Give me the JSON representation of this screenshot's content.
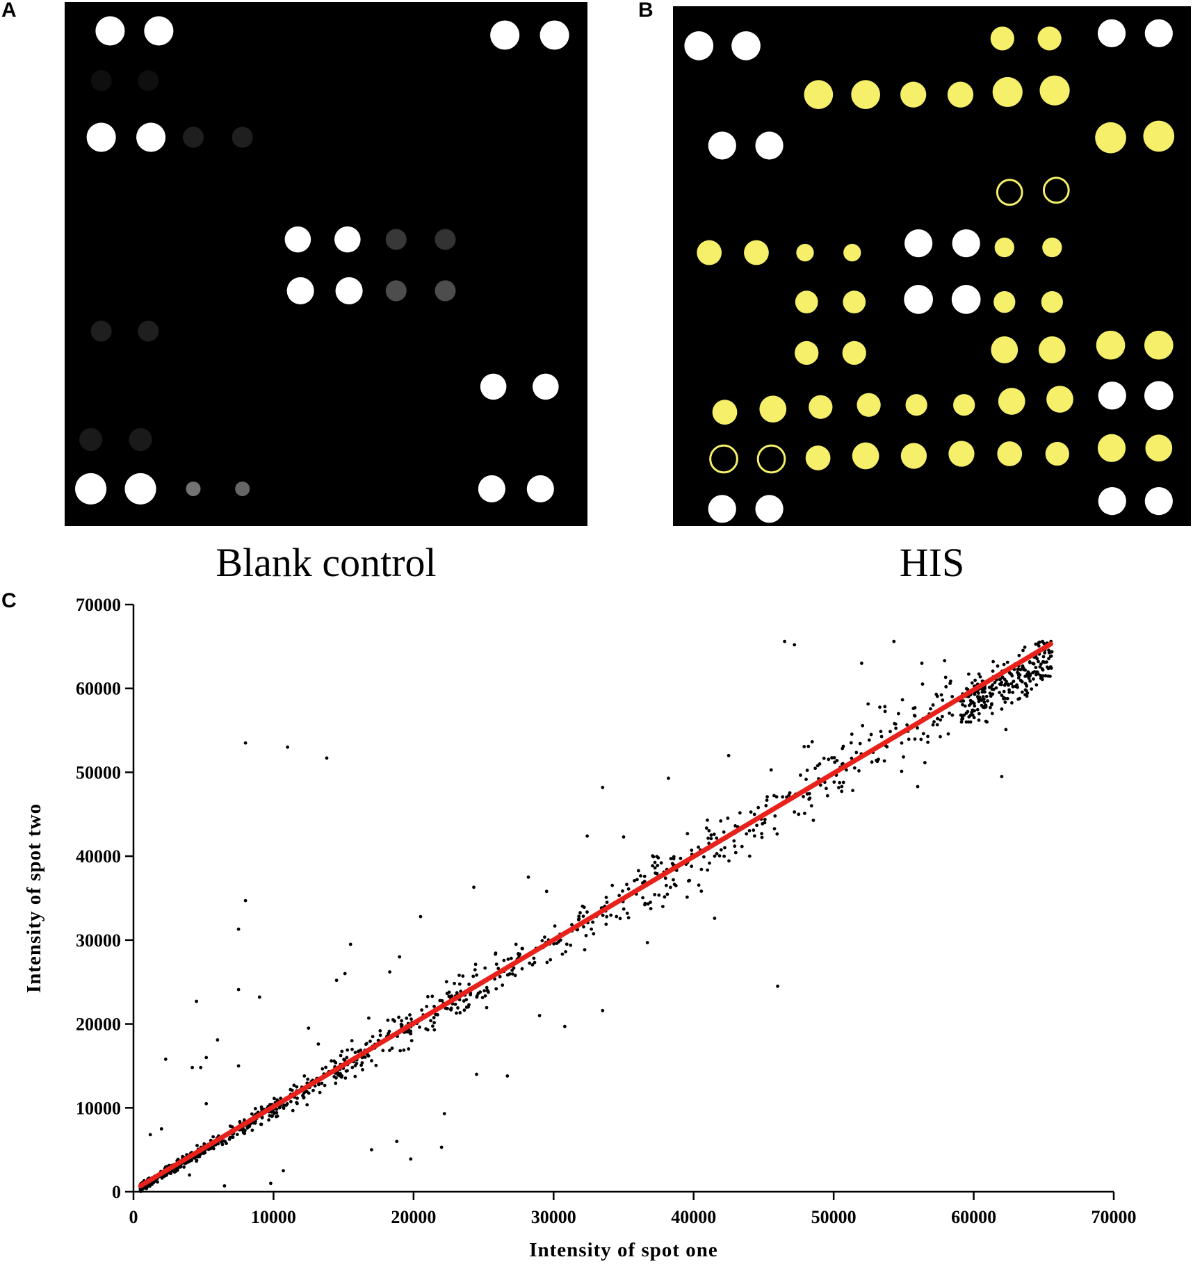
{
  "panels": {
    "a": {
      "letter": "A",
      "caption": "Blank control"
    },
    "b": {
      "letter": "B",
      "caption": "HIS"
    },
    "c": {
      "letter": "C"
    }
  },
  "colors": {
    "background": "#000000",
    "reference_spot": "#ffffff",
    "positive_spot": "#f5ef6a",
    "fit_line": "#e8211b",
    "points": "#000000"
  },
  "chart_data": {
    "type": "scatter",
    "xlabel": "Intensity of spot one",
    "ylabel": "Intensity of spot two",
    "xlim": [
      0,
      70000
    ],
    "ylim": [
      0,
      70000
    ],
    "xticks": [
      0,
      10000,
      20000,
      30000,
      40000,
      50000,
      60000,
      70000
    ],
    "yticks": [
      0,
      10000,
      20000,
      30000,
      40000,
      50000,
      60000,
      70000
    ],
    "grid": false,
    "fit_line": {
      "x": [
        500,
        65500
      ],
      "y": [
        700,
        65300
      ]
    },
    "outliers": [
      [
        8000,
        53500
      ],
      [
        11000,
        53000
      ],
      [
        13800,
        51700
      ],
      [
        8000,
        34700
      ],
      [
        7500,
        31300
      ],
      [
        7500,
        24100
      ],
      [
        9000,
        23200
      ],
      [
        4500,
        22700
      ],
      [
        2300,
        15800
      ],
      [
        4200,
        14800
      ],
      [
        4800,
        14800
      ],
      [
        15500,
        29500
      ],
      [
        14500,
        25200
      ],
      [
        15100,
        26000
      ],
      [
        24300,
        36300
      ],
      [
        28200,
        37500
      ],
      [
        29500,
        35800
      ],
      [
        33500,
        48200
      ],
      [
        38200,
        49300
      ],
      [
        32400,
        42400
      ],
      [
        35000,
        42300
      ],
      [
        42500,
        52000
      ],
      [
        41500,
        32600
      ],
      [
        36700,
        29700
      ],
      [
        33500,
        21600
      ],
      [
        30800,
        19700
      ],
      [
        29000,
        21000
      ],
      [
        26700,
        13800
      ],
      [
        24500,
        14000
      ],
      [
        22200,
        9300
      ],
      [
        22000,
        5300
      ],
      [
        19800,
        3900
      ],
      [
        18800,
        6000
      ],
      [
        17000,
        5000
      ],
      [
        9800,
        1000
      ],
      [
        10700,
        2500
      ],
      [
        46000,
        24500
      ],
      [
        46500,
        65600
      ],
      [
        47200,
        65200
      ],
      [
        54300,
        65600
      ],
      [
        56300,
        63000
      ],
      [
        52000,
        63000
      ],
      [
        49000,
        51000
      ],
      [
        50700,
        48800
      ],
      [
        56000,
        48300
      ],
      [
        62000,
        49500
      ],
      [
        62300,
        55100
      ],
      [
        55800,
        57700
      ],
      [
        47500,
        45000
      ],
      [
        44000,
        40000
      ],
      [
        41500,
        40000
      ],
      [
        40000,
        40000
      ],
      [
        37800,
        34000
      ],
      [
        36500,
        37000
      ],
      [
        30500,
        30000
      ],
      [
        20500,
        32800
      ],
      [
        19000,
        28000
      ],
      [
        18300,
        26200
      ],
      [
        16800,
        20700
      ],
      [
        15600,
        18000
      ],
      [
        13200,
        17600
      ],
      [
        7500,
        15000
      ],
      [
        6000,
        18100
      ],
      [
        5200,
        10500
      ],
      [
        12500,
        19500
      ],
      [
        5200,
        16000
      ],
      [
        2000,
        7500
      ],
      [
        1200,
        6800
      ],
      [
        6500,
        700
      ],
      [
        4000,
        2000
      ]
    ],
    "scatter_seed": 7,
    "scatter_noise_fraction": 0.07,
    "cluster": {
      "x_range": [
        59000,
        65600
      ],
      "y_range": [
        56000,
        65600
      ],
      "count": 260
    },
    "main_count": 1150
  },
  "array_a": {
    "white_spots": [
      [
        0.087,
        0.055,
        0.028
      ],
      [
        0.18,
        0.055,
        0.028
      ],
      [
        0.842,
        0.063,
        0.028
      ],
      [
        0.937,
        0.063,
        0.028
      ],
      [
        0.07,
        0.258,
        0.028
      ],
      [
        0.165,
        0.258,
        0.028
      ],
      [
        0.446,
        0.453,
        0.025
      ],
      [
        0.541,
        0.453,
        0.025
      ],
      [
        0.451,
        0.551,
        0.026
      ],
      [
        0.544,
        0.551,
        0.026
      ],
      [
        0.82,
        0.734,
        0.025
      ],
      [
        0.92,
        0.734,
        0.025
      ],
      [
        0.05,
        0.929,
        0.03
      ],
      [
        0.145,
        0.929,
        0.03
      ],
      [
        0.817,
        0.929,
        0.026
      ],
      [
        0.91,
        0.929,
        0.026
      ]
    ],
    "faint_spots": [
      [
        0.246,
        0.258,
        0.02,
        0.12
      ],
      [
        0.34,
        0.258,
        0.02,
        0.12
      ],
      [
        0.634,
        0.453,
        0.02,
        0.22
      ],
      [
        0.728,
        0.453,
        0.02,
        0.2
      ],
      [
        0.634,
        0.551,
        0.02,
        0.3
      ],
      [
        0.728,
        0.551,
        0.02,
        0.3
      ],
      [
        0.246,
        0.929,
        0.014,
        0.45
      ],
      [
        0.34,
        0.929,
        0.014,
        0.4
      ],
      [
        0.07,
        0.628,
        0.02,
        0.12
      ],
      [
        0.16,
        0.628,
        0.02,
        0.12
      ],
      [
        0.05,
        0.835,
        0.022,
        0.1
      ],
      [
        0.145,
        0.835,
        0.022,
        0.1
      ],
      [
        0.07,
        0.15,
        0.02,
        0.06
      ],
      [
        0.16,
        0.15,
        0.02,
        0.06
      ]
    ]
  },
  "array_b": {
    "white_spots": [
      [
        0.05,
        0.076,
        0.028
      ],
      [
        0.141,
        0.076,
        0.028
      ],
      [
        0.847,
        0.052,
        0.027
      ],
      [
        0.938,
        0.052,
        0.027
      ],
      [
        0.095,
        0.268,
        0.027
      ],
      [
        0.186,
        0.268,
        0.027
      ],
      [
        0.474,
        0.456,
        0.027
      ],
      [
        0.566,
        0.456,
        0.027
      ],
      [
        0.474,
        0.564,
        0.028
      ],
      [
        0.566,
        0.564,
        0.028
      ],
      [
        0.848,
        0.749,
        0.027
      ],
      [
        0.938,
        0.749,
        0.028
      ],
      [
        0.095,
        0.967,
        0.027
      ],
      [
        0.186,
        0.967,
        0.027
      ],
      [
        0.848,
        0.952,
        0.027
      ],
      [
        0.938,
        0.952,
        0.027
      ]
    ],
    "yellow_spots": [
      [
        0.636,
        0.062,
        0.023
      ],
      [
        0.727,
        0.062,
        0.023
      ],
      [
        0.281,
        0.17,
        0.028
      ],
      [
        0.372,
        0.17,
        0.028
      ],
      [
        0.464,
        0.17,
        0.025
      ],
      [
        0.555,
        0.17,
        0.025
      ],
      [
        0.646,
        0.165,
        0.029
      ],
      [
        0.737,
        0.162,
        0.029
      ],
      [
        0.845,
        0.253,
        0.03
      ],
      [
        0.938,
        0.25,
        0.03
      ],
      [
        0.07,
        0.474,
        0.024
      ],
      [
        0.161,
        0.474,
        0.024
      ],
      [
        0.255,
        0.474,
        0.017
      ],
      [
        0.346,
        0.474,
        0.017
      ],
      [
        0.64,
        0.464,
        0.019
      ],
      [
        0.732,
        0.464,
        0.019
      ],
      [
        0.258,
        0.569,
        0.022
      ],
      [
        0.35,
        0.569,
        0.022
      ],
      [
        0.64,
        0.569,
        0.021
      ],
      [
        0.732,
        0.569,
        0.021
      ],
      [
        0.258,
        0.667,
        0.023
      ],
      [
        0.35,
        0.667,
        0.023
      ],
      [
        0.64,
        0.661,
        0.026
      ],
      [
        0.732,
        0.661,
        0.026
      ],
      [
        0.845,
        0.652,
        0.028
      ],
      [
        0.938,
        0.652,
        0.028
      ],
      [
        0.1,
        0.781,
        0.024
      ],
      [
        0.193,
        0.775,
        0.026
      ],
      [
        0.285,
        0.771,
        0.023
      ],
      [
        0.378,
        0.767,
        0.023
      ],
      [
        0.47,
        0.767,
        0.021
      ],
      [
        0.562,
        0.767,
        0.021
      ],
      [
        0.654,
        0.76,
        0.026
      ],
      [
        0.747,
        0.756,
        0.026
      ],
      [
        0.28,
        0.869,
        0.024
      ],
      [
        0.372,
        0.865,
        0.026
      ],
      [
        0.465,
        0.865,
        0.025
      ],
      [
        0.557,
        0.861,
        0.025
      ],
      [
        0.65,
        0.861,
        0.024
      ],
      [
        0.742,
        0.861,
        0.023
      ],
      [
        0.847,
        0.85,
        0.027
      ],
      [
        0.938,
        0.85,
        0.026
      ]
    ],
    "yellow_rings": [
      [
        0.65,
        0.358,
        0.024
      ],
      [
        0.74,
        0.354,
        0.024
      ],
      [
        0.098,
        0.871,
        0.026
      ],
      [
        0.19,
        0.871,
        0.026
      ]
    ]
  }
}
